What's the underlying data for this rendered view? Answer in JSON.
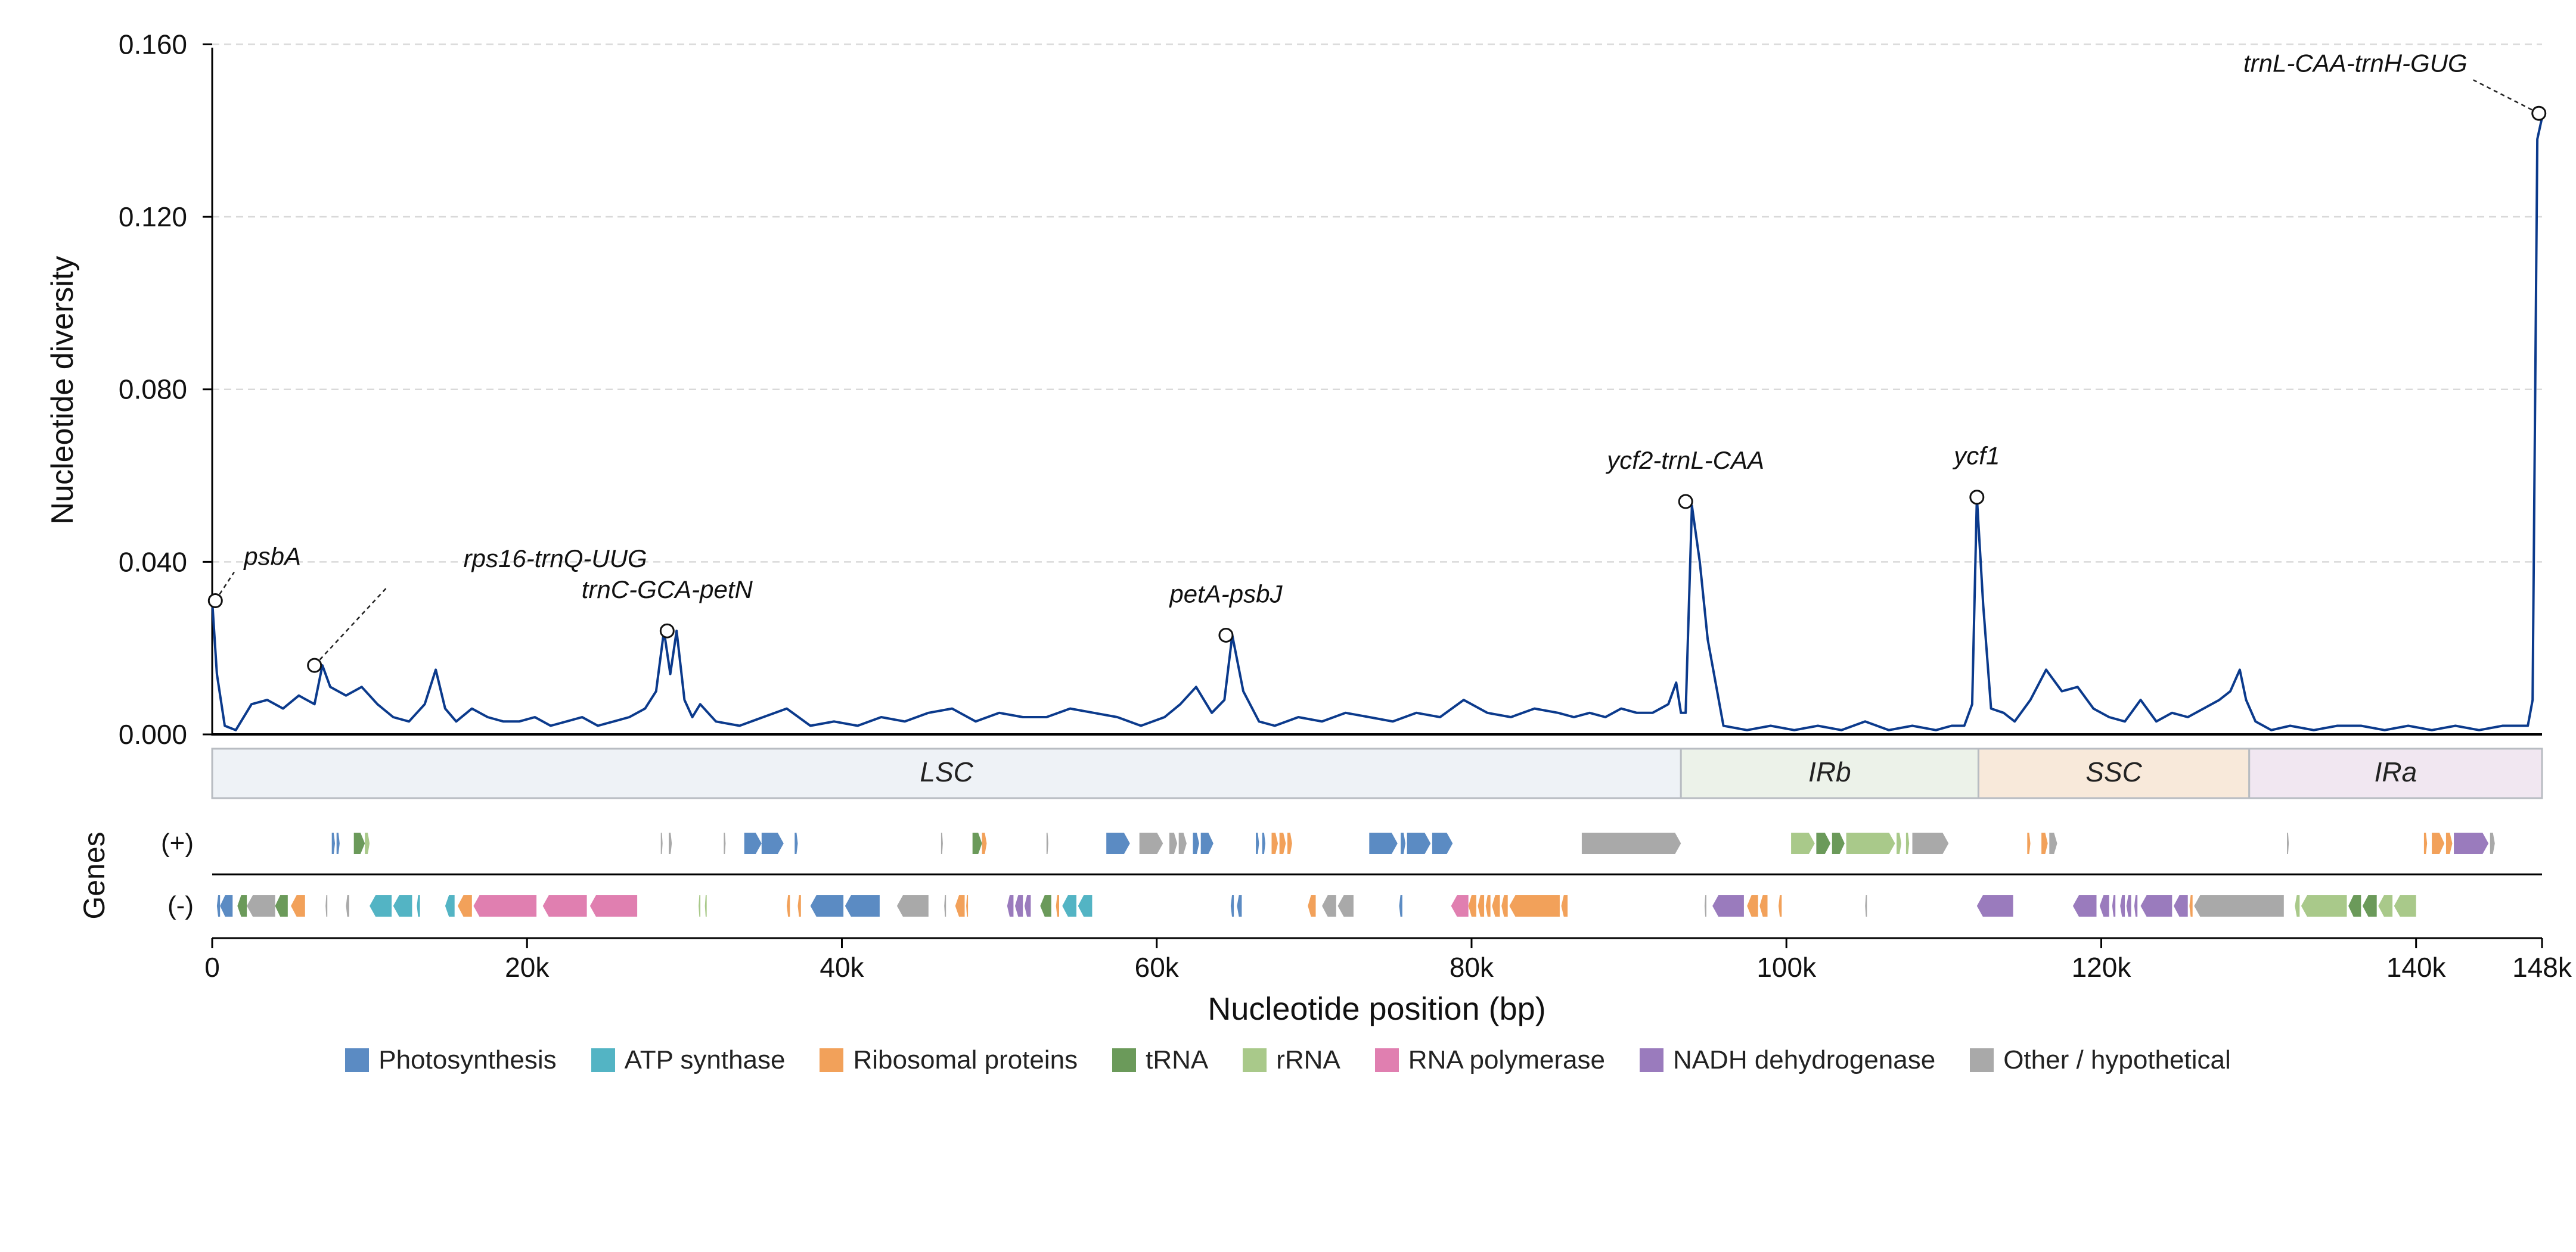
{
  "chart_data": {
    "type": "line",
    "xlabel": "Nucleotide position (bp)",
    "ylabel": "Nucleotide diversity",
    "xlim": [
      0,
      148000
    ],
    "ylim": [
      0,
      0.17
    ],
    "x_ticks": [
      0,
      20000,
      40000,
      60000,
      80000,
      100000,
      120000,
      140000,
      148000
    ],
    "x_tick_labels": [
      "0",
      "20k",
      "40k",
      "60k",
      "80k",
      "100k",
      "120k",
      "140k",
      "148k"
    ],
    "y_ticks": [
      0.0,
      0.04,
      0.08,
      0.12,
      0.16
    ],
    "y_tick_labels": [
      "0.000",
      "0.040",
      "0.080",
      "0.120",
      "0.160"
    ],
    "grid": "horizontal dashed",
    "line_color": "#0b3a8c",
    "series": [
      {
        "x": [
          0,
          300,
          800,
          1500,
          2500,
          3500,
          4500,
          5500,
          6500,
          7000,
          7500,
          8500,
          9500,
          10500,
          11500,
          12500,
          13500,
          14200,
          14800,
          15500,
          16500,
          17500,
          18500,
          19500,
          20500,
          21500,
          22500,
          23500,
          24500,
          25500,
          26500,
          27500,
          28200,
          28700,
          29100,
          29500,
          30000,
          30500,
          31000,
          32000,
          33500,
          35000,
          36500,
          38000,
          39500,
          41000,
          42500,
          44000,
          45500,
          47000,
          48500,
          50000,
          51500,
          53000,
          54500,
          56000,
          57500,
          59000,
          60500,
          61500,
          62500,
          63500,
          64300,
          64800,
          65500,
          66500,
          67500,
          69000,
          70500,
          72000,
          73500,
          75000,
          76500,
          78000,
          79500,
          81000,
          82500,
          84000,
          85500,
          86500,
          87500,
          88500,
          89500,
          90500,
          91500,
          92500,
          93000,
          93300,
          93600,
          94000,
          94500,
          95000,
          96000,
          97500,
          99000,
          100500,
          102000,
          103500,
          105000,
          106500,
          108000,
          109500,
          110500,
          111300,
          111800,
          112100,
          112500,
          113000,
          113800,
          114500,
          115500,
          116500,
          117500,
          118500,
          119500,
          120500,
          121500,
          122500,
          123500,
          124500,
          125500,
          126500,
          127500,
          128200,
          128800,
          129200,
          129800,
          130800,
          132000,
          133500,
          135000,
          136500,
          138000,
          139500,
          141000,
          142500,
          144000,
          145500,
          146500,
          147100,
          147400,
          147700,
          148000
        ],
        "y": [
          0.031,
          0.014,
          0.002,
          0.001,
          0.007,
          0.008,
          0.006,
          0.009,
          0.007,
          0.016,
          0.011,
          0.009,
          0.011,
          0.007,
          0.004,
          0.003,
          0.007,
          0.015,
          0.006,
          0.003,
          0.006,
          0.004,
          0.003,
          0.003,
          0.004,
          0.002,
          0.003,
          0.004,
          0.002,
          0.003,
          0.004,
          0.006,
          0.01,
          0.024,
          0.014,
          0.024,
          0.008,
          0.004,
          0.007,
          0.003,
          0.002,
          0.004,
          0.006,
          0.002,
          0.003,
          0.002,
          0.004,
          0.003,
          0.005,
          0.006,
          0.003,
          0.005,
          0.004,
          0.004,
          0.006,
          0.005,
          0.004,
          0.002,
          0.004,
          0.007,
          0.011,
          0.005,
          0.008,
          0.023,
          0.01,
          0.003,
          0.002,
          0.004,
          0.003,
          0.005,
          0.004,
          0.003,
          0.005,
          0.004,
          0.008,
          0.005,
          0.004,
          0.006,
          0.005,
          0.004,
          0.005,
          0.004,
          0.006,
          0.005,
          0.005,
          0.007,
          0.012,
          0.005,
          0.005,
          0.053,
          0.04,
          0.022,
          0.002,
          0.001,
          0.002,
          0.001,
          0.002,
          0.001,
          0.003,
          0.001,
          0.002,
          0.001,
          0.002,
          0.002,
          0.007,
          0.055,
          0.03,
          0.006,
          0.005,
          0.003,
          0.008,
          0.015,
          0.01,
          0.011,
          0.006,
          0.004,
          0.003,
          0.008,
          0.003,
          0.005,
          0.004,
          0.006,
          0.008,
          0.01,
          0.015,
          0.008,
          0.003,
          0.001,
          0.002,
          0.001,
          0.002,
          0.002,
          0.001,
          0.002,
          0.001,
          0.002,
          0.001,
          0.002,
          0.002,
          0.002,
          0.008,
          0.138,
          0.143
        ]
      }
    ],
    "annotations": [
      {
        "label": "psbA",
        "x": 200,
        "y": 0.031
      },
      {
        "label": "rps16-trnQ-UUG",
        "x": 6500,
        "y": 0.016
      },
      {
        "label": "trnC-GCA-petN",
        "x": 28900,
        "y": 0.024
      },
      {
        "label": "petA-psbJ",
        "x": 64400,
        "y": 0.023
      },
      {
        "label": "ycf2-trnL-CAA",
        "x": 93600,
        "y": 0.054
      },
      {
        "label": "ycf1",
        "x": 112100,
        "y": 0.055
      },
      {
        "label": "trnL-CAA-trnH-GUG",
        "x": 147800,
        "y": 0.144
      }
    ],
    "regions": [
      {
        "label": "LSC",
        "start": 0,
        "end": 93300,
        "color": "#eef2f6"
      },
      {
        "label": "IRb",
        "start": 93300,
        "end": 112200,
        "color": "#ecf2e9"
      },
      {
        "label": "SSC",
        "start": 112200,
        "end": 129400,
        "color": "#f8e9da"
      },
      {
        "label": "IRa",
        "start": 129400,
        "end": 148000,
        "color": "#f1e7f1"
      }
    ],
    "genes_label": "Genes",
    "strand_labels": [
      "(+)",
      "(-)"
    ],
    "categories": [
      {
        "name": "Photosynthesis",
        "color": "#5b8bc3"
      },
      {
        "name": "ATP synthase",
        "color": "#53b4c4"
      },
      {
        "name": "Ribosomal proteins",
        "color": "#f2a15a"
      },
      {
        "name": "tRNA",
        "color": "#6b9a5a"
      },
      {
        "name": "rRNA",
        "color": "#a9c98a"
      },
      {
        "name": "RNA polymerase",
        "color": "#e07fb0"
      },
      {
        "name": "NADH dehydrogenase",
        "color": "#9a7bbd"
      },
      {
        "name": "Other / hypothetical",
        "color": "#a9a9a9"
      }
    ],
    "genes": {
      "plus": [
        [
          7600,
          7800,
          0
        ],
        [
          7900,
          8100,
          0
        ],
        [
          9000,
          9700,
          3
        ],
        [
          9700,
          10000,
          4
        ],
        [
          28500,
          28600,
          7
        ],
        [
          29000,
          29200,
          7
        ],
        [
          32500,
          32600,
          7
        ],
        [
          33800,
          34900,
          0
        ],
        [
          34900,
          36300,
          0
        ],
        [
          37000,
          37200,
          0
        ],
        [
          46300,
          46400,
          7
        ],
        [
          48300,
          48900,
          3
        ],
        [
          48900,
          49200,
          2
        ],
        [
          53000,
          53100,
          7
        ],
        [
          56800,
          58300,
          0
        ],
        [
          58900,
          60400,
          7
        ],
        [
          60800,
          61300,
          7
        ],
        [
          61400,
          61900,
          7
        ],
        [
          62300,
          62700,
          0
        ],
        [
          62800,
          63600,
          0
        ],
        [
          66300,
          66500,
          0
        ],
        [
          66700,
          66900,
          0
        ],
        [
          67300,
          67700,
          2
        ],
        [
          67800,
          68200,
          2
        ],
        [
          68300,
          68600,
          2
        ],
        [
          73500,
          75300,
          0
        ],
        [
          75500,
          75800,
          0
        ],
        [
          75900,
          77400,
          0
        ],
        [
          77500,
          78800,
          0
        ],
        [
          87000,
          93300,
          7
        ],
        [
          100300,
          101800,
          4
        ],
        [
          101900,
          102800,
          3
        ],
        [
          102900,
          103700,
          3
        ],
        [
          103800,
          106900,
          4
        ],
        [
          107000,
          107300,
          4
        ],
        [
          107600,
          107800,
          4
        ],
        [
          108000,
          110300,
          7
        ],
        [
          115300,
          115500,
          2
        ],
        [
          116200,
          116600,
          2
        ],
        [
          116700,
          117200,
          7
        ],
        [
          131800,
          131900,
          7
        ],
        [
          140500,
          140700,
          2
        ],
        [
          141000,
          141800,
          2
        ],
        [
          141900,
          142300,
          2
        ],
        [
          142400,
          144600,
          6
        ],
        [
          144700,
          145000,
          7
        ]
      ],
      "minus": [
        [
          300,
          500,
          0
        ],
        [
          500,
          1300,
          0
        ],
        [
          1600,
          2200,
          3
        ],
        [
          2200,
          4000,
          7
        ],
        [
          4000,
          4800,
          3
        ],
        [
          5000,
          5900,
          2
        ],
        [
          7200,
          7300,
          7
        ],
        [
          8500,
          8700,
          7
        ],
        [
          10000,
          11400,
          1
        ],
        [
          11500,
          12700,
          1
        ],
        [
          13000,
          13200,
          1
        ],
        [
          14800,
          15400,
          1
        ],
        [
          15600,
          16500,
          2
        ],
        [
          16600,
          20600,
          5
        ],
        [
          21000,
          23800,
          5
        ],
        [
          24000,
          27000,
          5
        ],
        [
          30900,
          31000,
          4
        ],
        [
          31300,
          31400,
          4
        ],
        [
          36500,
          36700,
          2
        ],
        [
          37200,
          37400,
          2
        ],
        [
          38000,
          40100,
          0
        ],
        [
          40200,
          42400,
          0
        ],
        [
          43500,
          45500,
          7
        ],
        [
          46500,
          46600,
          7
        ],
        [
          47200,
          47800,
          2
        ],
        [
          47900,
          48000,
          2
        ],
        [
          50500,
          50900,
          6
        ],
        [
          51000,
          51500,
          6
        ],
        [
          51600,
          52000,
          6
        ],
        [
          52600,
          53300,
          3
        ],
        [
          53600,
          53800,
          2
        ],
        [
          54000,
          54900,
          1
        ],
        [
          55000,
          55900,
          1
        ],
        [
          64700,
          64900,
          0
        ],
        [
          65100,
          65400,
          0
        ],
        [
          69600,
          70100,
          2
        ],
        [
          70500,
          71400,
          7
        ],
        [
          71500,
          72500,
          7
        ],
        [
          75400,
          75600,
          0
        ],
        [
          78700,
          79800,
          5
        ],
        [
          79800,
          80300,
          2
        ],
        [
          80400,
          80800,
          2
        ],
        [
          80900,
          81200,
          2
        ],
        [
          81300,
          81800,
          2
        ],
        [
          81900,
          82300,
          2
        ],
        [
          82400,
          85600,
          2
        ],
        [
          85700,
          86100,
          2
        ],
        [
          94800,
          94900,
          7
        ],
        [
          95300,
          97300,
          6
        ],
        [
          97500,
          98200,
          2
        ],
        [
          98300,
          98800,
          2
        ],
        [
          99500,
          99700,
          2
        ],
        [
          105000,
          105100,
          7
        ],
        [
          112100,
          114400,
          6
        ],
        [
          118200,
          119700,
          6
        ],
        [
          119900,
          120500,
          6
        ],
        [
          120700,
          120900,
          6
        ],
        [
          121200,
          121500,
          6
        ],
        [
          121600,
          121900,
          6
        ],
        [
          122100,
          122300,
          6
        ],
        [
          122500,
          124500,
          6
        ],
        [
          124600,
          125500,
          6
        ],
        [
          125600,
          125800,
          2
        ],
        [
          125900,
          131600,
          7
        ],
        [
          132300,
          132600,
          4
        ],
        [
          132700,
          135600,
          4
        ],
        [
          135700,
          136500,
          3
        ],
        [
          136600,
          137500,
          3
        ],
        [
          137600,
          138500,
          4
        ],
        [
          138600,
          140000,
          4
        ]
      ]
    }
  }
}
